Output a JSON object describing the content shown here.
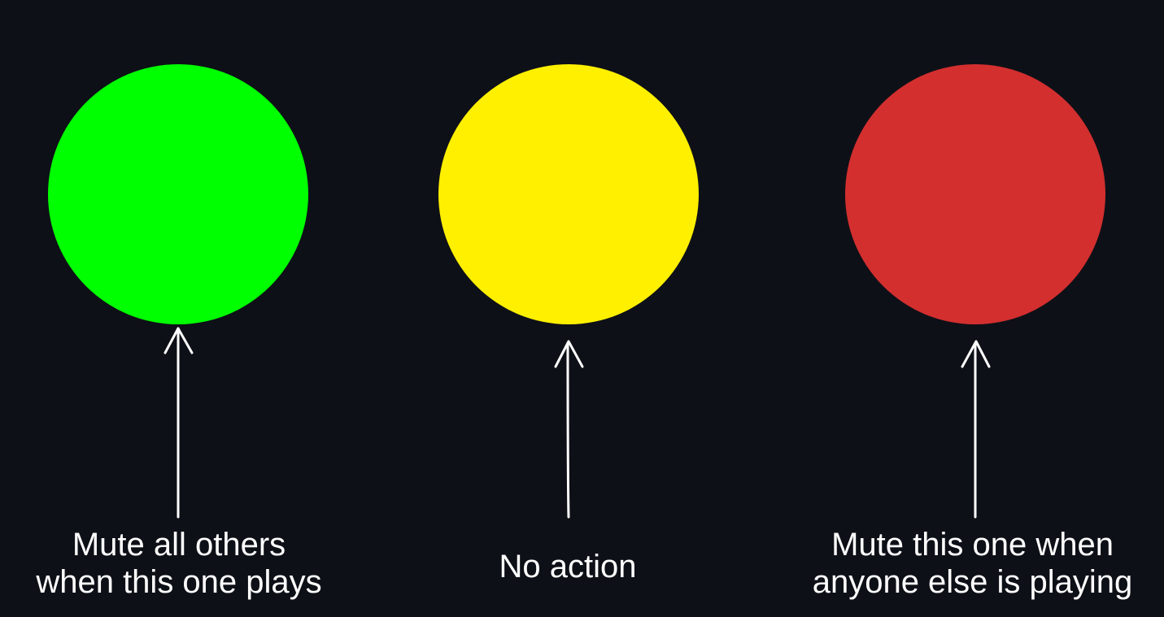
{
  "items": [
    {
      "id": "green",
      "color": "#00ff00",
      "label_lines": [
        "Mute all others",
        "when this one plays"
      ]
    },
    {
      "id": "yellow",
      "color": "#fff000",
      "label_lines": [
        "No action"
      ]
    },
    {
      "id": "red",
      "color": "#d32f2f",
      "label_lines": [
        "Mute this one when",
        "anyone else is playing"
      ]
    }
  ],
  "arrow_color": "#ffffff"
}
